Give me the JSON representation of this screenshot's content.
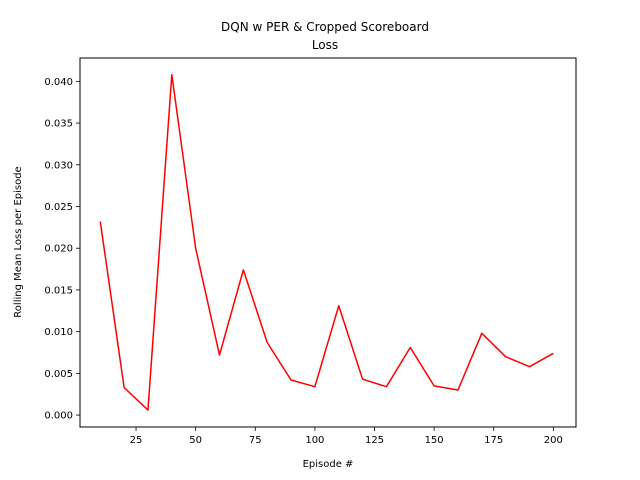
{
  "chart_data": {
    "type": "line",
    "title": [
      "DQN w PER & Cropped Scoreboard",
      "Loss"
    ],
    "xlabel": "Episode #",
    "ylabel": "Rolling Mean Loss per Episode",
    "xlim": [
      1.5,
      209.5
    ],
    "ylim": [
      -0.00143,
      0.0428
    ],
    "x_ticks": [
      25,
      50,
      75,
      100,
      125,
      150,
      175,
      200
    ],
    "x_tick_labels": [
      "25",
      "50",
      "75",
      "100",
      "125",
      "150",
      "175",
      "200"
    ],
    "y_ticks": [
      0.0,
      0.005,
      0.01,
      0.015,
      0.02,
      0.025,
      0.03,
      0.035,
      0.04
    ],
    "y_tick_labels": [
      "0.000",
      "0.005",
      "0.010",
      "0.015",
      "0.020",
      "0.025",
      "0.030",
      "0.035",
      "0.040"
    ],
    "grid": false,
    "series": [
      {
        "color": "#ff0000",
        "x": [
          10,
          20,
          30,
          40,
          50,
          60,
          70,
          80,
          90,
          100,
          110,
          120,
          130,
          140,
          150,
          160,
          170,
          180,
          190,
          200
        ],
        "y": [
          0.0232,
          0.0033,
          0.0006,
          0.0408,
          0.02,
          0.0072,
          0.0174,
          0.0087,
          0.0042,
          0.0034,
          0.0131,
          0.0043,
          0.0034,
          0.0081,
          0.0035,
          0.003,
          0.0098,
          0.007,
          0.0058,
          0.0074
        ]
      }
    ]
  }
}
